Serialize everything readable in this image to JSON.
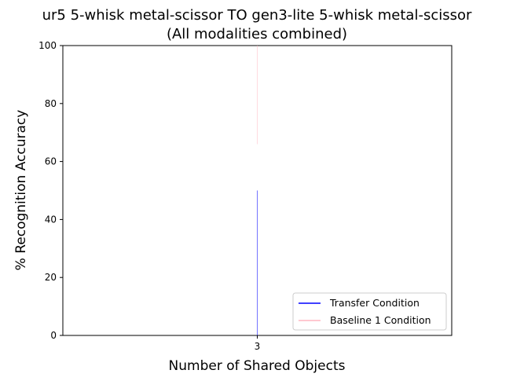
{
  "chart_data": {
    "type": "line",
    "title": "ur5 5-whisk metal-scissor TO gen3-lite 5-whisk metal-scissor",
    "subtitle": "(All modalities combined)",
    "xlabel": "Number of Shared Objects",
    "ylabel": "% Recognition Accuracy",
    "x_ticks": [
      "3"
    ],
    "y_ticks": [
      "0",
      "20",
      "40",
      "60",
      "80",
      "100"
    ],
    "ylim": [
      0,
      100
    ],
    "grid": false,
    "legend_position": "lower-right",
    "series": [
      {
        "name": "Transfer Condition",
        "color": "#0000ff",
        "x": [
          3
        ],
        "y_min": [
          0
        ],
        "y_max": [
          50
        ]
      },
      {
        "name": "Baseline 1 Condition",
        "color": "#ffb6c1",
        "x": [
          3
        ],
        "y_min": [
          66
        ],
        "y_max": [
          100
        ]
      }
    ]
  }
}
